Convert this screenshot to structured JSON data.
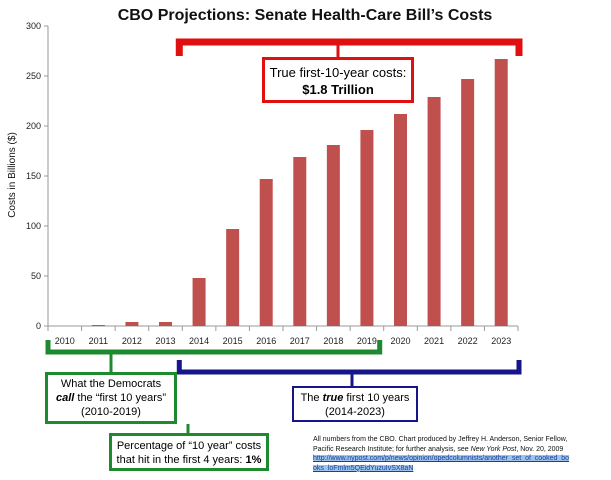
{
  "chart_data": {
    "type": "bar",
    "title": "CBO Projections: Senate Health-Care Bill’s Costs",
    "xlabel": "",
    "ylabel": "Costs in Billions ($)",
    "ylim": [
      0,
      300
    ],
    "yticks": [
      0,
      50,
      100,
      150,
      200,
      250,
      300
    ],
    "grid": false,
    "legend": "none",
    "categories": [
      "2010",
      "2011",
      "2012",
      "2013",
      "2014",
      "2015",
      "2016",
      "2017",
      "2018",
      "2019",
      "2020",
      "2021",
      "2022",
      "2023"
    ],
    "values": [
      0,
      1,
      4,
      4,
      48,
      97,
      147,
      169,
      181,
      196,
      212,
      229,
      247,
      267
    ],
    "bar_color": "#c0504d"
  },
  "bracket_colors": {
    "true_costs": "#e01010",
    "democrats_window": "#1d8a2f",
    "true_window": "#16168a"
  },
  "annotations": {
    "total": {
      "line1": "True first-10-year costs:",
      "line2": "$1.8 Trillion"
    },
    "democrats": {
      "pre": "What the Democrats",
      "call": "call",
      "mid": " the “first 10 years”",
      "range": "(2010-2019)"
    },
    "true_window": {
      "the": "The ",
      "true": "true",
      "rest": " first 10 years",
      "range": "(2014-2023)"
    },
    "percentage": {
      "line1": "Percentage of “10 year” costs",
      "line2": "that hit in the first 4 years: ",
      "value": "1%"
    }
  },
  "source": {
    "line1": "All numbers from the CBO.  Chart produced by Jeffrey H. Anderson, Senior Fellow,",
    "line2": "Pacific Research Institute; for further analysis, see ",
    "publication": "New York Post",
    "date": ", Nov. 20, 2009",
    "url": "http://www.nypost.com/p/news/opinion/opedcolumnists/another_set_of_cooked_bo oks_loFmlm5QEidYuzuIvSX8aN"
  }
}
